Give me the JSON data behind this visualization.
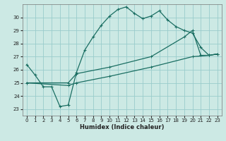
{
  "xlabel": "Humidex (Indice chaleur)",
  "xlim": [
    -0.5,
    23.5
  ],
  "ylim": [
    22.5,
    31.0
  ],
  "yticks": [
    23,
    24,
    25,
    26,
    27,
    28,
    29,
    30
  ],
  "xticks": [
    0,
    1,
    2,
    3,
    4,
    5,
    6,
    7,
    8,
    9,
    10,
    11,
    12,
    13,
    14,
    15,
    16,
    17,
    18,
    19,
    20,
    21,
    22,
    23
  ],
  "bg_color": "#cce9e4",
  "grid_color": "#99cccc",
  "line_color": "#1a6e62",
  "line1_x": [
    0,
    1,
    2,
    3,
    4,
    5,
    6,
    7,
    8,
    9,
    10,
    11,
    12,
    13,
    14,
    15,
    16,
    17,
    18,
    19,
    20,
    21,
    22,
    23
  ],
  "line1_y": [
    26.4,
    25.6,
    24.7,
    24.7,
    23.2,
    23.3,
    25.8,
    27.5,
    28.5,
    29.4,
    30.1,
    30.6,
    30.8,
    30.3,
    29.9,
    30.1,
    30.5,
    29.8,
    29.3,
    29.0,
    28.8,
    27.7,
    27.1,
    27.2
  ],
  "line2_x": [
    0,
    5,
    6,
    10,
    15,
    19,
    20,
    21,
    22,
    23
  ],
  "line2_y": [
    25.0,
    25.0,
    25.7,
    26.2,
    27.0,
    28.5,
    29.0,
    27.1,
    27.1,
    27.2
  ],
  "line3_x": [
    0,
    5,
    6,
    10,
    15,
    20,
    22,
    23
  ],
  "line3_y": [
    25.0,
    24.8,
    25.0,
    25.5,
    26.2,
    27.0,
    27.1,
    27.2
  ]
}
